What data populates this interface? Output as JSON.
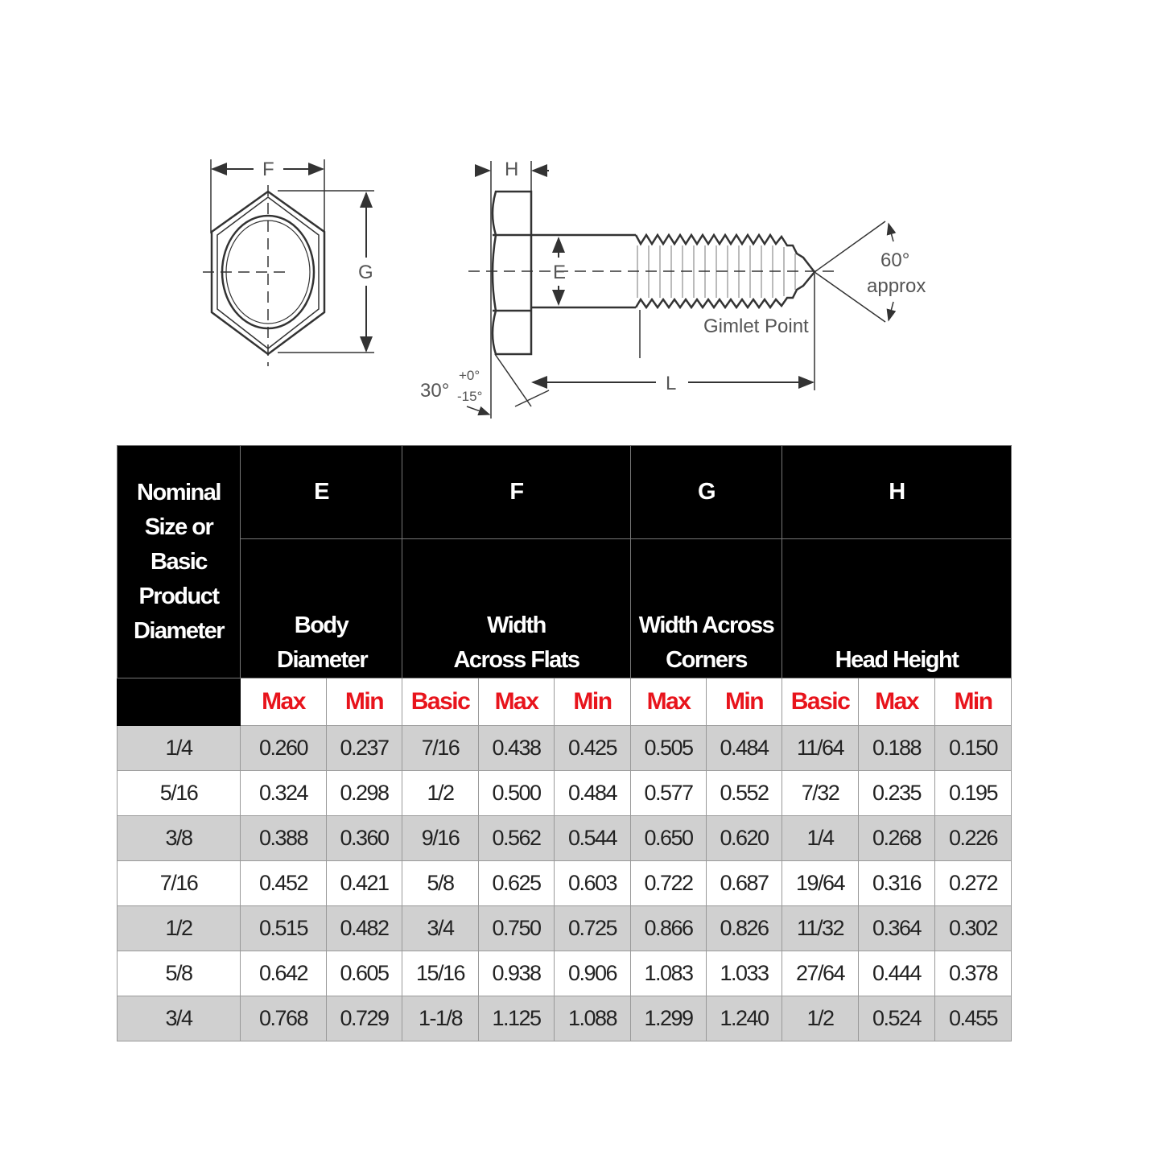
{
  "diagram": {
    "labels": {
      "F": "F",
      "G": "G",
      "H": "H",
      "E": "E",
      "L": "L",
      "angle_60": "60°",
      "approx": "approx",
      "gimlet": "Gimlet Point",
      "angle_30": "30°",
      "plus0": "+0°",
      "minus15": "-15°"
    }
  },
  "table": {
    "header": {
      "nominal": "Nominal Size or Basic Product Diameter",
      "groups": [
        {
          "letter": "E",
          "name": "Body Diameter"
        },
        {
          "letter": "F",
          "name": "Width Across Flats"
        },
        {
          "letter": "G",
          "name": "Width Across Corners"
        },
        {
          "letter": "H",
          "name": "Head Height"
        }
      ],
      "sub": [
        "Max",
        "Min",
        "Basic",
        "Max",
        "Min",
        "Max",
        "Min",
        "Basic",
        "Max",
        "Min"
      ]
    },
    "rows": [
      [
        "1/4",
        "0.260",
        "0.237",
        "7/16",
        "0.438",
        "0.425",
        "0.505",
        "0.484",
        "11/64",
        "0.188",
        "0.150"
      ],
      [
        "5/16",
        "0.324",
        "0.298",
        "1/2",
        "0.500",
        "0.484",
        "0.577",
        "0.552",
        "7/32",
        "0.235",
        "0.195"
      ],
      [
        "3/8",
        "0.388",
        "0.360",
        "9/16",
        "0.562",
        "0.544",
        "0.650",
        "0.620",
        "1/4",
        "0.268",
        "0.226"
      ],
      [
        "7/16",
        "0.452",
        "0.421",
        "5/8",
        "0.625",
        "0.603",
        "0.722",
        "0.687",
        "19/64",
        "0.316",
        "0.272"
      ],
      [
        "1/2",
        "0.515",
        "0.482",
        "3/4",
        "0.750",
        "0.725",
        "0.866",
        "0.826",
        "11/32",
        "0.364",
        "0.302"
      ],
      [
        "5/8",
        "0.642",
        "0.605",
        "15/16",
        "0.938",
        "0.906",
        "1.083",
        "1.033",
        "27/64",
        "0.444",
        "0.378"
      ],
      [
        "3/4",
        "0.768",
        "0.729",
        "1-1/8",
        "1.125",
        "1.088",
        "1.299",
        "1.240",
        "1/2",
        "0.524",
        "0.455"
      ]
    ],
    "colors": {
      "header_bg": "#000000",
      "sub_header_text": "#e8141c",
      "stripe": "#d0d0d0"
    }
  }
}
